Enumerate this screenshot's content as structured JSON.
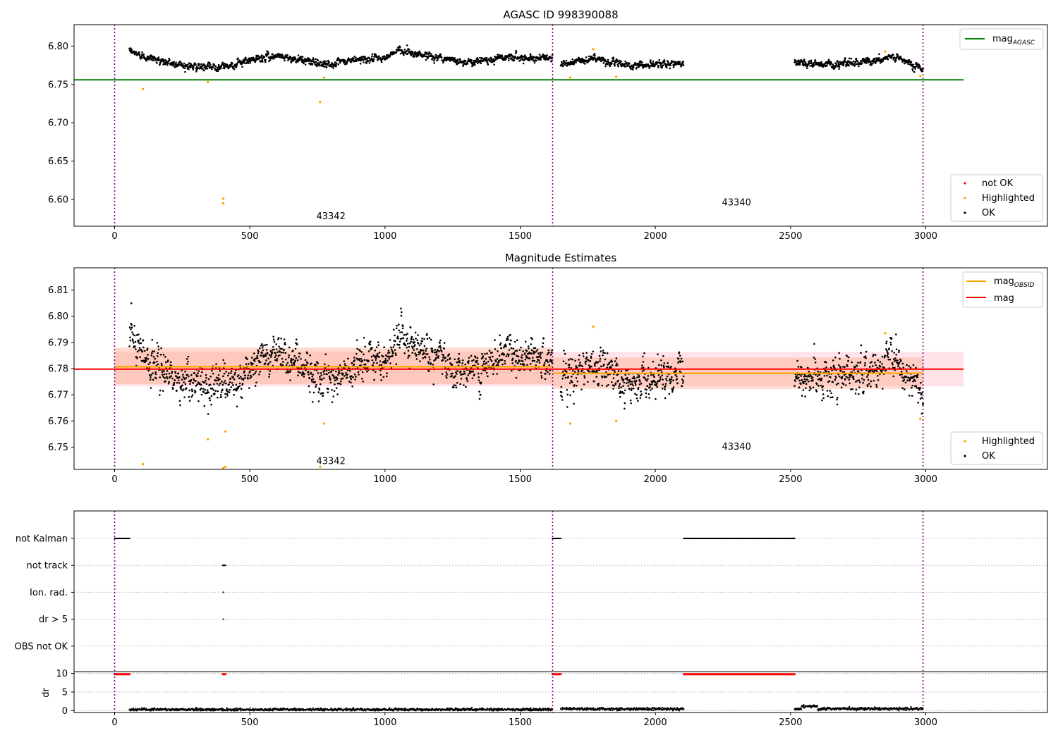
{
  "chart_data": [
    {
      "type": "scatter",
      "title": "AGASC ID 998390088",
      "xlim": [
        -150,
        3450
      ],
      "ylim": [
        6.565,
        6.828
      ],
      "x_ticks": [
        0,
        500,
        1000,
        1500,
        2000,
        2500,
        3000
      ],
      "y_ticks": [
        6.6,
        6.65,
        6.7,
        6.75,
        6.8
      ],
      "obsid_boundaries": [
        0,
        1620,
        2990
      ],
      "obsid_labels": [
        {
          "text": "43342",
          "x": 800,
          "y": 6.574
        },
        {
          "text": "43340",
          "x": 2300,
          "y": 6.592
        }
      ],
      "lines": [
        {
          "name": "mag_AGASC",
          "label_main": "mag",
          "label_sub": "AGASC",
          "color": "#008000",
          "x": [
            -150,
            3140
          ],
          "y": [
            6.756,
            6.756
          ]
        }
      ],
      "series": [
        {
          "name": "not OK",
          "color": "#ff0000",
          "segments": []
        },
        {
          "name": "Highlighted",
          "color": "#ffa500",
          "points": [
            [
              105,
              6.744
            ],
            [
              345,
              6.753
            ],
            [
              402,
              6.601
            ],
            [
              402,
              6.595
            ],
            [
              760,
              6.727
            ],
            [
              775,
              6.759
            ],
            [
              1685,
              6.759
            ],
            [
              1770,
              6.796
            ],
            [
              1855,
              6.76
            ],
            [
              2850,
              6.793
            ],
            [
              2980,
              6.761
            ]
          ]
        },
        {
          "name": "OK",
          "color": "#000000",
          "segments": [
            {
              "x_range": [
                55,
                1620
              ],
              "level": [
                [
                  55,
                  6.793
                ],
                [
                  100,
                  6.788
                ],
                [
                  200,
                  6.778
                ],
                [
                  330,
                  6.772
                ],
                [
                  430,
                  6.775
                ],
                [
                  550,
                  6.785
                ],
                [
                  600,
                  6.788
                ],
                [
                  700,
                  6.781
                ],
                [
                  800,
                  6.776
                ],
                [
                  900,
                  6.783
                ],
                [
                  1000,
                  6.784
                ],
                [
                  1050,
                  6.795
                ],
                [
                  1150,
                  6.788
                ],
                [
                  1300,
                  6.779
                ],
                [
                  1450,
                  6.786
                ],
                [
                  1620,
                  6.784
                ]
              ],
              "noise": 0.004
            },
            {
              "x_range": [
                1650,
                2105
              ],
              "level": [
                [
                  1650,
                  6.776
                ],
                [
                  1770,
                  6.784
                ],
                [
                  1900,
                  6.775
                ],
                [
                  2000,
                  6.776
                ],
                [
                  2105,
                  6.778
                ]
              ],
              "noise": 0.004
            },
            {
              "x_range": [
                2515,
                2990
              ],
              "level": [
                [
                  2515,
                  6.778
                ],
                [
                  2650,
                  6.776
                ],
                [
                  2800,
                  6.781
                ],
                [
                  2880,
                  6.786
                ],
                [
                  2990,
                  6.771
                ]
              ],
              "noise": 0.004
            }
          ]
        }
      ],
      "legends": [
        {
          "position": "upper right",
          "entries": [
            "mag_AGASC"
          ]
        },
        {
          "position": "lower right",
          "entries": [
            "not OK",
            "Highlighted",
            "OK"
          ]
        }
      ]
    },
    {
      "type": "scatter",
      "title": "Magnitude Estimates",
      "xlim": [
        -150,
        3450
      ],
      "ylim": [
        6.7415,
        6.8185
      ],
      "x_ticks": [
        0,
        500,
        1000,
        1500,
        2000,
        2500,
        3000
      ],
      "y_ticks": [
        6.75,
        6.76,
        6.77,
        6.78,
        6.79,
        6.8,
        6.81
      ],
      "obsid_boundaries": [
        0,
        1620,
        2990
      ],
      "obsid_labels": [
        {
          "text": "43342",
          "x": 800,
          "y": 6.7435
        },
        {
          "text": "43340",
          "x": 2300,
          "y": 6.749
        }
      ],
      "bands": [
        {
          "name": "mag range",
          "color": "#ffc0cb",
          "opacity": 0.45,
          "x": [
            0,
            3140
          ],
          "y": [
            6.7732,
            6.7864
          ]
        },
        {
          "name": "mag_OBSID 43342 range",
          "color": "#ffa07a",
          "opacity": 0.4,
          "x": [
            0,
            1620
          ],
          "y": [
            6.774,
            6.788
          ]
        },
        {
          "name": "mag_OBSID 43340 range",
          "color": "#ffa07a",
          "opacity": 0.35,
          "x": [
            1620,
            2990
          ],
          "y": [
            6.7722,
            6.7842
          ]
        }
      ],
      "lines": [
        {
          "name": "mag_OBSID",
          "label_main": "mag",
          "label_sub": "OBSID",
          "color": "#ffa500",
          "segments": [
            {
              "x": [
                0,
                1620
              ],
              "y": [
                6.7807,
                6.7807
              ]
            },
            {
              "x": [
                1620,
                2990
              ],
              "y": [
                6.7782,
                6.7782
              ]
            }
          ]
        },
        {
          "name": "mag",
          "label_main": "mag",
          "color": "#ff0000",
          "x": [
            -150,
            3140
          ],
          "y": [
            6.7798,
            6.7798
          ]
        }
      ],
      "series": [
        {
          "name": "Highlighted",
          "color": "#ffa500",
          "points": [
            [
              105,
              6.7435
            ],
            [
              345,
              6.753
            ],
            [
              402,
              6.742
            ],
            [
              410,
              6.7425
            ],
            [
              410,
              6.756
            ],
            [
              760,
              6.7425
            ],
            [
              775,
              6.759
            ],
            [
              1685,
              6.759
            ],
            [
              1770,
              6.796
            ],
            [
              1855,
              6.76
            ],
            [
              2850,
              6.7935
            ],
            [
              2980,
              6.7608
            ]
          ]
        },
        {
          "name": "OK",
          "color": "#000000",
          "segments": [
            {
              "x_range": [
                55,
                1620
              ],
              "level": [
                [
                  55,
                  6.793
                ],
                [
                  100,
                  6.786
                ],
                [
                  200,
                  6.777
                ],
                [
                  330,
                  6.772
                ],
                [
                  430,
                  6.775
                ],
                [
                  550,
                  6.784
                ],
                [
                  600,
                  6.787
                ],
                [
                  700,
                  6.78
                ],
                [
                  800,
                  6.775
                ],
                [
                  900,
                  6.782
                ],
                [
                  1000,
                  6.783
                ],
                [
                  1050,
                  6.792
                ],
                [
                  1150,
                  6.787
                ],
                [
                  1300,
                  6.778
                ],
                [
                  1450,
                  6.786
                ],
                [
                  1620,
                  6.784
                ]
              ],
              "noise": 0.0065
            },
            {
              "x_range": [
                1650,
                2105
              ],
              "level": [
                [
                  1650,
                  6.775
                ],
                [
                  1770,
                  6.783
                ],
                [
                  1900,
                  6.773
                ],
                [
                  2000,
                  6.775
                ],
                [
                  2105,
                  6.778
                ]
              ],
              "noise": 0.0065
            },
            {
              "x_range": [
                2515,
                2990
              ],
              "level": [
                [
                  2515,
                  6.777
                ],
                [
                  2650,
                  6.775
                ],
                [
                  2800,
                  6.78
                ],
                [
                  2880,
                  6.786
                ],
                [
                  2990,
                  6.77
                ]
              ],
              "noise": 0.0065
            }
          ]
        }
      ],
      "legends": [
        {
          "position": "upper right",
          "entries": [
            "mag_OBSID",
            "mag"
          ]
        },
        {
          "position": "lower right",
          "entries": [
            "Highlighted",
            "OK"
          ]
        }
      ]
    },
    {
      "type": "scatter",
      "title": "",
      "xlim": [
        -150,
        3450
      ],
      "x_ticks": [
        0,
        500,
        1000,
        1500,
        2000,
        2500,
        3000
      ],
      "obsid_boundaries": [
        0,
        1620,
        2990
      ],
      "flag_rows": [
        {
          "label": "not Kalman",
          "ranges": [
            [
              0,
              55
            ],
            [
              1620,
              1650
            ],
            [
              2105,
              2515
            ]
          ]
        },
        {
          "label": "not track",
          "ranges": [
            [
              400,
              410
            ]
          ]
        },
        {
          "label": "Ion. rad.",
          "ranges": [
            [
              402,
              404
            ]
          ]
        },
        {
          "label": "dr > 5",
          "ranges": [
            [
              402,
              404
            ]
          ]
        },
        {
          "label": "OBS not OK",
          "ranges": []
        }
      ],
      "dr": {
        "ylabel": "dr",
        "ylim": [
          -0.5,
          10.5
        ],
        "y_ticks": [
          0,
          5,
          10
        ],
        "flagged_color": "#ff0000",
        "flagged_value": 9.8,
        "flagged_ranges": [
          [
            0,
            55
          ],
          [
            400,
            410
          ],
          [
            1620,
            1650
          ],
          [
            2105,
            2515
          ]
        ],
        "ok_color": "#000000",
        "ok_segments": [
          {
            "x_range": [
              55,
              1620
            ],
            "level": 0.3
          },
          {
            "x_range": [
              1650,
              2105
            ],
            "level": 0.45
          },
          {
            "x_range": [
              2515,
              2990
            ],
            "level": 0.5
          }
        ]
      }
    }
  ]
}
